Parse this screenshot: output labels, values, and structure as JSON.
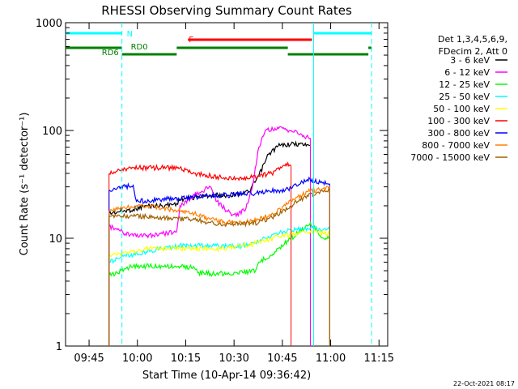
{
  "chart_data": {
    "type": "line",
    "title": "RHESSI Observing Summary Count Rates",
    "xlabel": "Start Time (10-Apr-14 09:36:42)",
    "ylabel": "Count Rate (s⁻¹ detector⁻¹)",
    "x_unit": "minutes since 09:36:42",
    "xlim": [
      0,
      100
    ],
    "ylim": [
      1,
      1000
    ],
    "yscale": "log",
    "xticks": [
      {
        "x": 7.3,
        "label": "09:45"
      },
      {
        "x": 22.3,
        "label": "10:00"
      },
      {
        "x": 37.3,
        "label": "10:15"
      },
      {
        "x": 52.3,
        "label": "10:30"
      },
      {
        "x": 67.3,
        "label": "10:45"
      },
      {
        "x": 82.3,
        "label": "11:00"
      },
      {
        "x": 97.3,
        "label": "11:15"
      }
    ],
    "yticks": [
      {
        "v": 1,
        "label": "1"
      },
      {
        "v": 10,
        "label": "10"
      },
      {
        "v": 100,
        "label": "100"
      },
      {
        "v": 1000,
        "label": "1000"
      }
    ],
    "legend_header": [
      "Det 1,3,4,5,6,9,",
      "FDecim 2, Att 0"
    ],
    "legend_position": "right",
    "series": [
      {
        "name": "3 - 6 keV",
        "color": "#000000",
        "points": [
          [
            13.5,
            17
          ],
          [
            16,
            17.5
          ],
          [
            18.5,
            18
          ],
          [
            21,
            18.5
          ],
          [
            25,
            20
          ],
          [
            30,
            20
          ],
          [
            34.5,
            21
          ],
          [
            35.5,
            23
          ],
          [
            40,
            24
          ],
          [
            45,
            25
          ],
          [
            50,
            25
          ],
          [
            54,
            26
          ],
          [
            57,
            27
          ],
          [
            60,
            38
          ],
          [
            63,
            60
          ],
          [
            66,
            72
          ],
          [
            70,
            75
          ],
          [
            75,
            74
          ],
          [
            76,
            73
          ]
        ]
      },
      {
        "name": "6 - 12 keV",
        "color": "#ff00ff",
        "points": [
          [
            13.5,
            13
          ],
          [
            16,
            12
          ],
          [
            18.5,
            11
          ],
          [
            21,
            10.5
          ],
          [
            25,
            10.5
          ],
          [
            30,
            11
          ],
          [
            34.5,
            11.5
          ],
          [
            35.5,
            20
          ],
          [
            40,
            25
          ],
          [
            45,
            30
          ],
          [
            47,
            22
          ],
          [
            50,
            18
          ],
          [
            53,
            16
          ],
          [
            56,
            19
          ],
          [
            58,
            30
          ],
          [
            60,
            70
          ],
          [
            62,
            100
          ],
          [
            65,
            105
          ],
          [
            70,
            100
          ],
          [
            76,
            85
          ]
        ]
      },
      {
        "name": "12 - 25 keV",
        "color": "#00ff00",
        "points": [
          [
            13.5,
            4.5
          ],
          [
            16,
            4.8
          ],
          [
            18.5,
            5.2
          ],
          [
            21,
            5.5
          ],
          [
            25,
            5.5
          ],
          [
            30,
            5.5
          ],
          [
            35,
            5.5
          ],
          [
            40,
            5.3
          ],
          [
            41,
            4.8
          ],
          [
            45,
            4.7
          ],
          [
            50,
            4.7
          ],
          [
            55,
            4.8
          ],
          [
            59,
            5
          ],
          [
            60,
            6
          ],
          [
            65,
            7.5
          ],
          [
            70,
            10
          ],
          [
            75,
            13
          ],
          [
            76,
            14
          ],
          [
            80,
            10
          ],
          [
            82,
            10
          ]
        ]
      },
      {
        "name": "25 - 50 keV",
        "color": "#00ffff",
        "points": [
          [
            13.5,
            6
          ],
          [
            16,
            6.5
          ],
          [
            18.5,
            7
          ],
          [
            21,
            7
          ],
          [
            25,
            7.5
          ],
          [
            30,
            8
          ],
          [
            35,
            8.5
          ],
          [
            40,
            8.5
          ],
          [
            45,
            8.5
          ],
          [
            50,
            8.5
          ],
          [
            55,
            8.5
          ],
          [
            59,
            9
          ],
          [
            62,
            10
          ],
          [
            67,
            11.5
          ],
          [
            72,
            12
          ],
          [
            76,
            12.5
          ],
          [
            80,
            12
          ],
          [
            82,
            12
          ]
        ]
      },
      {
        "name": "50 - 100 keV",
        "color": "#ffff00",
        "points": [
          [
            13.5,
            7
          ],
          [
            16,
            7
          ],
          [
            18.5,
            7.5
          ],
          [
            21,
            7.5
          ],
          [
            25,
            8
          ],
          [
            30,
            8
          ],
          [
            35,
            8
          ],
          [
            40,
            8
          ],
          [
            45,
            8
          ],
          [
            50,
            8
          ],
          [
            55,
            8.5
          ],
          [
            59,
            9
          ],
          [
            62,
            9.5
          ],
          [
            67,
            10.5
          ],
          [
            72,
            11
          ],
          [
            76,
            11.5
          ],
          [
            80,
            11
          ],
          [
            82,
            11
          ]
        ]
      },
      {
        "name": "100 - 300 keV",
        "color": "#ff0000",
        "points": [
          [
            13.5,
            40
          ],
          [
            16,
            42
          ],
          [
            18.5,
            44
          ],
          [
            21,
            45
          ],
          [
            35.5,
            45
          ],
          [
            40,
            40
          ],
          [
            45,
            38
          ],
          [
            50,
            36
          ],
          [
            55,
            36
          ],
          [
            60,
            38
          ],
          [
            64,
            40
          ],
          [
            67,
            45
          ],
          [
            69,
            50
          ],
          [
            70,
            47
          ]
        ]
      },
      {
        "name": "300 - 800 keV",
        "color": "#0000ff",
        "points": [
          [
            13.5,
            28
          ],
          [
            16,
            29
          ],
          [
            18.5,
            30
          ],
          [
            21,
            31
          ],
          [
            22,
            22
          ],
          [
            30,
            23
          ],
          [
            35,
            23.5
          ],
          [
            40,
            24
          ],
          [
            45,
            25
          ],
          [
            50,
            25
          ],
          [
            55,
            26
          ],
          [
            59,
            26
          ],
          [
            62,
            27
          ],
          [
            67,
            28
          ],
          [
            70,
            29
          ],
          [
            75,
            35
          ],
          [
            80,
            33
          ],
          [
            82,
            32
          ]
        ]
      },
      {
        "name": "800 - 7000 keV",
        "color": "#ff7f00",
        "points": [
          [
            13.5,
            18
          ],
          [
            16,
            18.5
          ],
          [
            18.5,
            19
          ],
          [
            21,
            19.5
          ],
          [
            25,
            20
          ],
          [
            30,
            19
          ],
          [
            35,
            18
          ],
          [
            40,
            17
          ],
          [
            45,
            15
          ],
          [
            50,
            14
          ],
          [
            55,
            14
          ],
          [
            60,
            15
          ],
          [
            65,
            17
          ],
          [
            70,
            22
          ],
          [
            75,
            27
          ],
          [
            80,
            29
          ],
          [
            82,
            30
          ]
        ]
      },
      {
        "name": "7000 - 15000 keV",
        "color": "#a06000",
        "points": [
          [
            13.5,
            16
          ],
          [
            16,
            16
          ],
          [
            18.5,
            16
          ],
          [
            21,
            16
          ],
          [
            25,
            16
          ],
          [
            30,
            15.5
          ],
          [
            35,
            15
          ],
          [
            40,
            15
          ],
          [
            45,
            14
          ],
          [
            50,
            13.5
          ],
          [
            55,
            13.5
          ],
          [
            60,
            14
          ],
          [
            65,
            16
          ],
          [
            70,
            20
          ],
          [
            75,
            25
          ],
          [
            80,
            27
          ],
          [
            82,
            28
          ]
        ]
      }
    ],
    "bars": [
      {
        "label": "N",
        "color": "#00ffff",
        "segments": [
          [
            0,
            17.5
          ],
          [
            77,
            95
          ]
        ]
      },
      {
        "label": "F",
        "color": "#ff0000",
        "segments": [
          [
            38,
            76.5
          ]
        ]
      },
      {
        "label": "RD0",
        "color": "#007f00",
        "segments": [
          [
            0,
            17.5
          ],
          [
            34.5,
            69
          ],
          [
            94,
            95
          ]
        ]
      },
      {
        "label": "RD6",
        "color": "#007f00",
        "segments": [
          [
            17.5,
            34.5
          ],
          [
            69,
            94
          ]
        ]
      }
    ],
    "vlines": [
      {
        "x": 17.5,
        "style": "dashed"
      },
      {
        "x": 95,
        "style": "dashed"
      },
      {
        "x": 77,
        "style": "solid"
      }
    ],
    "footer_date": "22-Oct-2021 08:17"
  }
}
